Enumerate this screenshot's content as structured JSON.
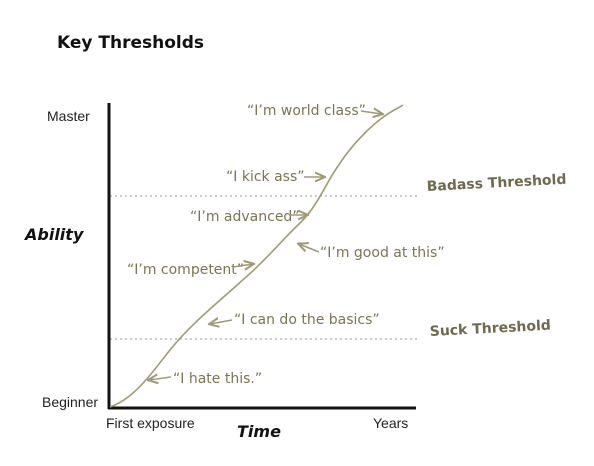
{
  "title": "Key Thresholds",
  "axes": {
    "y_label": "Ability",
    "x_label": "Time",
    "y_top": "Master",
    "y_bottom": "Beginner",
    "x_left": "First exposure",
    "x_right": "Years"
  },
  "thresholds": {
    "badass": "Badass Threshold",
    "suck": "Suck Threshold"
  },
  "callouts": {
    "world_class": "“I’m world class”",
    "kick_ass": "“I kick ass”",
    "advanced": "“I’m advanced”",
    "good_at_this": "“I’m good at this”",
    "competent": "“I’m competent”",
    "basics": "“I can do the basics”",
    "hate_this": "“I hate this.”"
  },
  "colors": {
    "accent": "#a09a78",
    "text_accent": "#7a7552",
    "threshold_text": "#6e6a4d",
    "axis": "#111111",
    "grid": "#999999"
  }
}
